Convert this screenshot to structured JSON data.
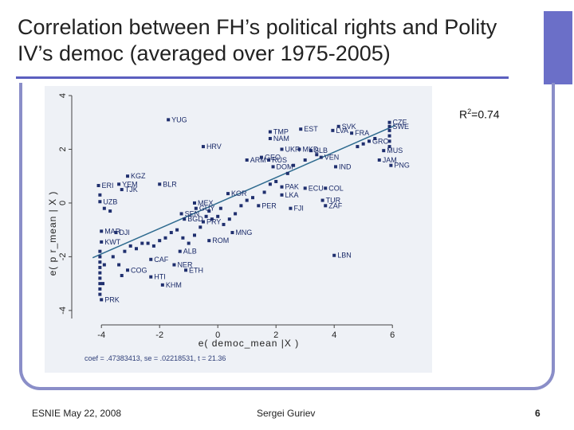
{
  "slide": {
    "title": "Correlation between FH’s political rights and Polity IV’s democ (averaged over 1975-2005)",
    "footer_left": "ESNIE May 22, 2008",
    "footer_center": "Sergei Guriev",
    "page_number": "6",
    "r2_label": "R",
    "r2_sup": "2",
    "r2_value": "=0.74",
    "regression_note": "coef = .47383413, se = .02218531, t = 21.36"
  },
  "colors": {
    "accent": "#6b6fc8",
    "frame": "#8a8ec8",
    "marker": "#1f2f6e",
    "fit_line": "#2e6b8f",
    "panel": "#eef1f6"
  },
  "chart_data": {
    "type": "scatter",
    "title": "",
    "xlabel": "e( democ_mean |X )",
    "ylabel": "e( p r_mean | X )",
    "xlim": [
      -4.8,
      7.2
    ],
    "ylim": [
      -4.3,
      4.0
    ],
    "xticks": [
      -4,
      -2,
      0,
      2,
      4,
      6
    ],
    "yticks": [
      -4,
      -2,
      0,
      2,
      4
    ],
    "grid": false,
    "fit_line": {
      "slope": 0.474,
      "intercept": 0.0
    },
    "points": [
      {
        "label": "YUG",
        "x": -1.7,
        "y": 3.1
      },
      {
        "label": "EST",
        "x": 2.85,
        "y": 2.75
      },
      {
        "label": "SVK",
        "x": 4.15,
        "y": 2.85
      },
      {
        "label": "LVA",
        "x": 3.95,
        "y": 2.7
      },
      {
        "label": "CZE",
        "x": 5.9,
        "y": 3.0
      },
      {
        "label": "SWE",
        "x": 5.9,
        "y": 2.85
      },
      {
        "label": "FRA",
        "x": 4.6,
        "y": 2.6
      },
      {
        "label": "TMP",
        "x": 1.8,
        "y": 2.65
      },
      {
        "label": "NAM",
        "x": 1.8,
        "y": 2.4
      },
      {
        "label": "GRC",
        "x": 5.2,
        "y": 2.3
      },
      {
        "label": "HRV",
        "x": -0.5,
        "y": 2.1
      },
      {
        "label": "UKR",
        "x": 2.2,
        "y": 2.0
      },
      {
        "label": "MKD",
        "x": 2.8,
        "y": 2.0
      },
      {
        "label": "SLB",
        "x": 3.2,
        "y": 1.95
      },
      {
        "label": "MUS",
        "x": 5.7,
        "y": 1.95
      },
      {
        "label": "ARM",
        "x": 1.0,
        "y": 1.6
      },
      {
        "label": "GEO",
        "x": 1.5,
        "y": 1.7
      },
      {
        "label": "RUS",
        "x": 1.75,
        "y": 1.6
      },
      {
        "label": "VEN",
        "x": 3.55,
        "y": 1.7
      },
      {
        "label": "DOM",
        "x": 1.9,
        "y": 1.35
      },
      {
        "label": "IND",
        "x": 4.05,
        "y": 1.35
      },
      {
        "label": "JAM",
        "x": 5.55,
        "y": 1.6
      },
      {
        "label": "PNG",
        "x": 5.95,
        "y": 1.4
      },
      {
        "label": "KGZ",
        "x": -3.1,
        "y": 1.0
      },
      {
        "label": "YEM",
        "x": -3.4,
        "y": 0.7
      },
      {
        "label": "TJK",
        "x": -3.3,
        "y": 0.5
      },
      {
        "label": "ERI",
        "x": -4.1,
        "y": 0.65
      },
      {
        "label": "BLR",
        "x": -2.0,
        "y": 0.7
      },
      {
        "label": "KOR",
        "x": 0.35,
        "y": 0.35
      },
      {
        "label": "PAK",
        "x": 2.2,
        "y": 0.6
      },
      {
        "label": "LKA",
        "x": 2.2,
        "y": 0.3
      },
      {
        "label": "ECU",
        "x": 3.0,
        "y": 0.55
      },
      {
        "label": "COL",
        "x": 3.7,
        "y": 0.55
      },
      {
        "label": "TUR",
        "x": 3.6,
        "y": 0.1
      },
      {
        "label": "ZAF",
        "x": 3.7,
        "y": -0.1
      },
      {
        "label": "FJI",
        "x": 2.5,
        "y": -0.2
      },
      {
        "label": "PER",
        "x": 1.4,
        "y": -0.1
      },
      {
        "label": "PRY",
        "x": -0.5,
        "y": -0.7
      },
      {
        "label": "MEX",
        "x": -0.8,
        "y": 0.0
      },
      {
        "label": "GUY",
        "x": -0.75,
        "y": -0.2
      },
      {
        "label": "SEN",
        "x": -1.25,
        "y": -0.4
      },
      {
        "label": "BGD",
        "x": -1.15,
        "y": -0.6
      },
      {
        "label": "MNG",
        "x": 0.5,
        "y": -1.1
      },
      {
        "label": "ROM",
        "x": -0.3,
        "y": -1.4
      },
      {
        "label": "ALB",
        "x": -1.3,
        "y": -1.8
      },
      {
        "label": "UZB",
        "x": -4.05,
        "y": 0.05
      },
      {
        "label": "MAR",
        "x": -4.0,
        "y": -1.05
      },
      {
        "label": "DJI",
        "x": -3.5,
        "y": -1.1
      },
      {
        "label": "KWT",
        "x": -4.0,
        "y": -1.45
      },
      {
        "label": "LBN",
        "x": 4.0,
        "y": -1.95
      },
      {
        "label": "CAF",
        "x": -2.3,
        "y": -2.1
      },
      {
        "label": "NER",
        "x": -1.5,
        "y": -2.3
      },
      {
        "label": "ETH",
        "x": -1.1,
        "y": -2.5
      },
      {
        "label": "HTI",
        "x": -2.3,
        "y": -2.75
      },
      {
        "label": "KHM",
        "x": -1.9,
        "y": -3.05
      },
      {
        "label": "COG",
        "x": -3.1,
        "y": -2.5
      },
      {
        "label": "PRK",
        "x": -4.0,
        "y": -3.6
      }
    ],
    "unlabeled_points": [
      {
        "x": -4.05,
        "y": -1.8
      },
      {
        "x": -4.05,
        "y": -2.0
      },
      {
        "x": -4.05,
        "y": -2.2
      },
      {
        "x": -4.05,
        "y": -2.4
      },
      {
        "x": -4.05,
        "y": -2.6
      },
      {
        "x": -4.05,
        "y": -2.8
      },
      {
        "x": -4.05,
        "y": -3.0
      },
      {
        "x": -4.05,
        "y": -3.2
      },
      {
        "x": -4.05,
        "y": -3.4
      },
      {
        "x": -3.95,
        "y": -3.0
      },
      {
        "x": -3.9,
        "y": -2.3
      },
      {
        "x": -3.6,
        "y": -2.0
      },
      {
        "x": -3.4,
        "y": -2.3
      },
      {
        "x": -3.3,
        "y": -2.7
      },
      {
        "x": -3.2,
        "y": -1.8
      },
      {
        "x": -3.0,
        "y": -1.6
      },
      {
        "x": -2.8,
        "y": -1.7
      },
      {
        "x": -2.6,
        "y": -1.5
      },
      {
        "x": -2.4,
        "y": -1.5
      },
      {
        "x": -2.2,
        "y": -1.6
      },
      {
        "x": -2.0,
        "y": -1.4
      },
      {
        "x": -1.8,
        "y": -1.3
      },
      {
        "x": -1.6,
        "y": -1.1
      },
      {
        "x": -1.4,
        "y": -1.0
      },
      {
        "x": -1.2,
        "y": -1.3
      },
      {
        "x": -1.0,
        "y": -1.5
      },
      {
        "x": -0.8,
        "y": -1.2
      },
      {
        "x": -0.6,
        "y": -0.9
      },
      {
        "x": -0.4,
        "y": -0.5
      },
      {
        "x": -0.2,
        "y": -0.6
      },
      {
        "x": 0.0,
        "y": -0.5
      },
      {
        "x": 0.2,
        "y": -0.8
      },
      {
        "x": 0.4,
        "y": -0.6
      },
      {
        "x": 0.6,
        "y": -0.4
      },
      {
        "x": 0.8,
        "y": -0.1
      },
      {
        "x": 1.0,
        "y": 0.1
      },
      {
        "x": 1.2,
        "y": 0.2
      },
      {
        "x": 1.6,
        "y": 0.4
      },
      {
        "x": 1.8,
        "y": 0.7
      },
      {
        "x": 2.0,
        "y": 0.8
      },
      {
        "x": 2.4,
        "y": 1.1
      },
      {
        "x": 2.6,
        "y": 1.4
      },
      {
        "x": 3.0,
        "y": 1.6
      },
      {
        "x": 3.4,
        "y": 1.8
      },
      {
        "x": 4.8,
        "y": 2.1
      },
      {
        "x": 5.0,
        "y": 2.2
      },
      {
        "x": 5.4,
        "y": 2.4
      },
      {
        "x": 5.9,
        "y": 2.5
      },
      {
        "x": 5.9,
        "y": 2.7
      },
      {
        "x": 5.9,
        "y": 2.3
      },
      {
        "x": 5.9,
        "y": 2.1
      },
      {
        "x": -4.05,
        "y": 0.3
      },
      {
        "x": -3.9,
        "y": -0.2
      },
      {
        "x": -3.7,
        "y": -0.3
      },
      {
        "x": -0.3,
        "y": -0.3
      },
      {
        "x": 0.1,
        "y": -0.2
      }
    ]
  }
}
